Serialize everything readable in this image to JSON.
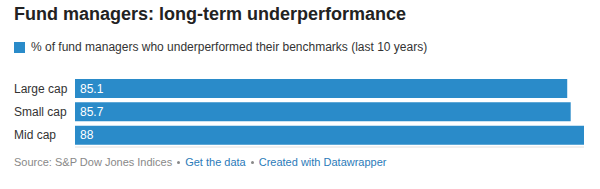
{
  "chart_data": {
    "type": "bar",
    "orientation": "horizontal",
    "title": "Fund managers: long-term underperformance",
    "categories": [
      "Large cap",
      "Small cap",
      "Mid cap"
    ],
    "series": [
      {
        "name": "% of fund managers who underperformed their benchmarks (last 10 years)",
        "color": "#2a8bc9",
        "values": [
          85.1,
          85.7,
          88
        ]
      }
    ],
    "xlim": [
      0,
      88
    ],
    "data_labels": true,
    "tick_labels": "y",
    "legend": "top",
    "footer": [
      "Source: S&P Dow Jones Indices",
      "Get the data",
      "Created with Datawrapper"
    ]
  }
}
